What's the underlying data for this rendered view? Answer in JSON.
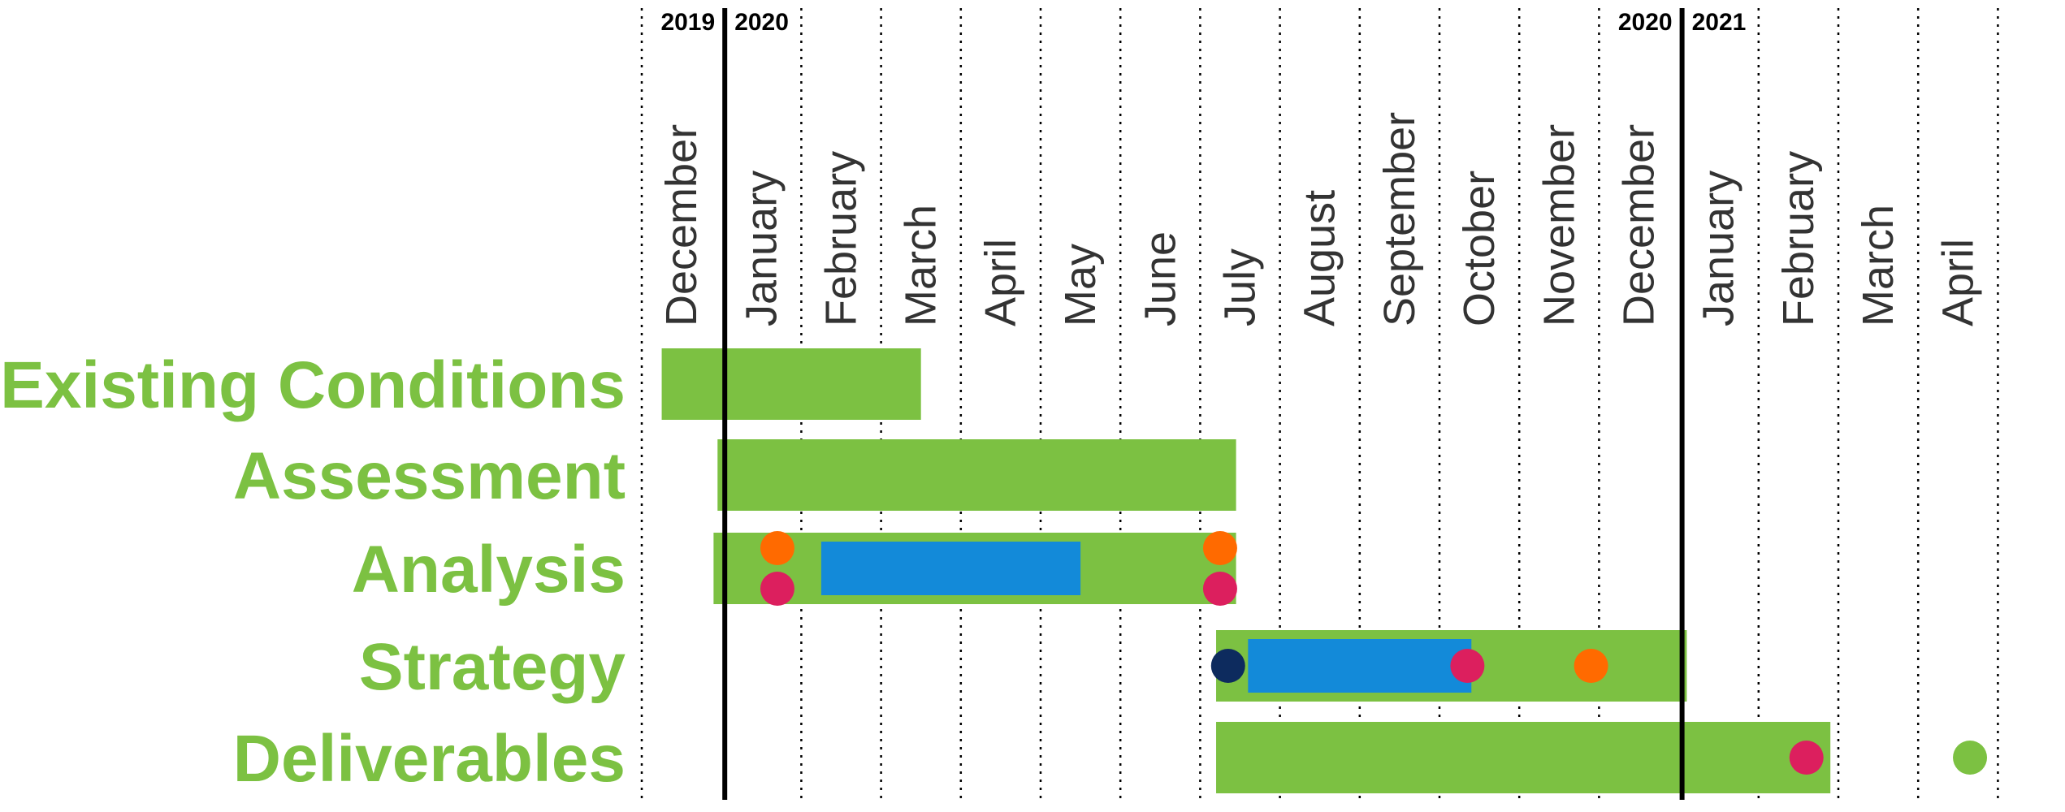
{
  "colors": {
    "task_bar": "#7cc142",
    "sub_bar": "#138ad9",
    "orange": "#ff6a00",
    "magenta": "#dc1f5e",
    "navy": "#0d2b5e",
    "green": "#7cc142",
    "label": "#7cc142",
    "grid": "#000000",
    "month_text": "#333333"
  },
  "chart_data": {
    "type": "gantt",
    "months": [
      "December",
      "January",
      "February",
      "March",
      "April",
      "May",
      "June",
      "July",
      "August",
      "September",
      "October",
      "November",
      "December",
      "January",
      "February",
      "March",
      "April"
    ],
    "years": [
      {
        "label": "2019",
        "side": "left",
        "boundary_index": 1
      },
      {
        "label": "2020",
        "side": "right",
        "boundary_index": 1
      },
      {
        "label": "2020",
        "side": "left",
        "boundary_index": 13
      },
      {
        "label": "2021",
        "side": "right",
        "boundary_index": 13
      }
    ],
    "year_boundaries": [
      1,
      13
    ],
    "rows": [
      {
        "label": "Existing Conditions"
      },
      {
        "label": "Assessment"
      },
      {
        "label": "Analysis"
      },
      {
        "label": "Strategy"
      },
      {
        "label": "Deliverables"
      }
    ],
    "bars": [
      {
        "row": 0,
        "start": 0.25,
        "end": 3.5,
        "kind": "task"
      },
      {
        "row": 1,
        "start": 0.95,
        "end": 7.45,
        "kind": "task"
      },
      {
        "row": 2,
        "start": 0.9,
        "end": 7.45,
        "kind": "task"
      },
      {
        "row": 2,
        "start": 2.25,
        "end": 5.5,
        "kind": "sub"
      },
      {
        "row": 3,
        "start": 7.2,
        "end": 13.1,
        "kind": "task"
      },
      {
        "row": 3,
        "start": 7.6,
        "end": 10.4,
        "kind": "sub"
      },
      {
        "row": 4,
        "start": 7.2,
        "end": 14.9,
        "kind": "task"
      }
    ],
    "milestones": [
      {
        "row": 2,
        "lane": "upper",
        "at": 1.7,
        "color": "orange"
      },
      {
        "row": 2,
        "lane": "lower",
        "at": 1.7,
        "color": "magenta"
      },
      {
        "row": 2,
        "lane": "upper",
        "at": 7.25,
        "color": "orange"
      },
      {
        "row": 2,
        "lane": "lower",
        "at": 7.25,
        "color": "magenta"
      },
      {
        "row": 3,
        "lane": "center",
        "at": 7.35,
        "color": "navy"
      },
      {
        "row": 3,
        "lane": "center",
        "at": 10.35,
        "color": "magenta"
      },
      {
        "row": 3,
        "lane": "center",
        "at": 11.9,
        "color": "orange"
      },
      {
        "row": 4,
        "lane": "center",
        "at": 14.6,
        "color": "magenta"
      },
      {
        "row": 4,
        "lane": "center",
        "at": 16.65,
        "color": "green"
      }
    ]
  }
}
